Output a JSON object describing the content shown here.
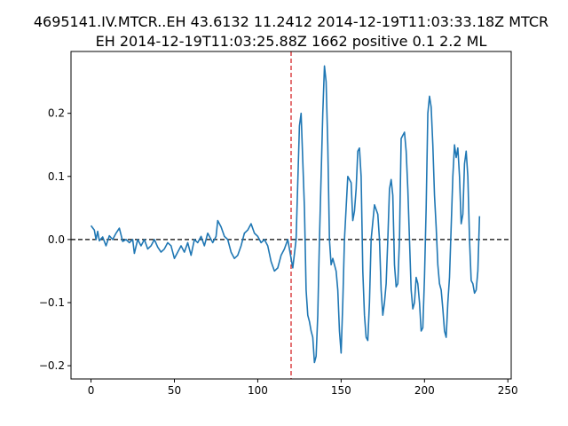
{
  "chart_data": {
    "type": "line",
    "title_lines": [
      "4695141.IV.MTCR..EH 43.6132 11.2412 2014-12-19T11:03:33.18Z MTCR",
      "EH 2014-12-19T11:03:25.88Z 1662 positive 0.1 2.2 ML"
    ],
    "xlabel": "",
    "ylabel": "",
    "xlim": [
      -12,
      252
    ],
    "ylim": [
      -0.221,
      0.298
    ],
    "xticks": [
      0,
      50,
      100,
      150,
      200,
      250
    ],
    "xtick_labels": [
      "0",
      "50",
      "100",
      "150",
      "200",
      "250"
    ],
    "yticks": [
      -0.2,
      -0.1,
      0.0,
      0.1,
      0.2
    ],
    "ytick_labels": [
      "−0.2",
      "−0.1",
      "0.0",
      "0.1",
      "0.2"
    ],
    "grid": false,
    "line_color": "#1f77b4",
    "vline": {
      "x": 120,
      "color": "#d62728",
      "style": "dashed"
    },
    "hline": {
      "y": 0.0,
      "color": "#000000",
      "style": "dashed"
    },
    "series": [
      {
        "name": "waveform",
        "keypoints": [
          [
            0,
            0.022
          ],
          [
            2,
            0.015
          ],
          [
            3,
            0.0
          ],
          [
            4,
            0.013
          ],
          [
            5,
            -0.002
          ],
          [
            7,
            0.004
          ],
          [
            9,
            -0.01
          ],
          [
            11,
            0.006
          ],
          [
            13,
            0.0
          ],
          [
            15,
            0.01
          ],
          [
            17,
            0.018
          ],
          [
            19,
            -0.003
          ],
          [
            21,
            0.0
          ],
          [
            23,
            -0.005
          ],
          [
            25,
            0.0
          ],
          [
            26,
            -0.022
          ],
          [
            28,
            0.0
          ],
          [
            30,
            -0.01
          ],
          [
            32,
            0.0
          ],
          [
            34,
            -0.015
          ],
          [
            36,
            -0.01
          ],
          [
            38,
            0.0
          ],
          [
            40,
            -0.012
          ],
          [
            42,
            -0.02
          ],
          [
            44,
            -0.015
          ],
          [
            46,
            -0.005
          ],
          [
            48,
            -0.01
          ],
          [
            50,
            -0.03
          ],
          [
            52,
            -0.02
          ],
          [
            54,
            -0.01
          ],
          [
            56,
            -0.02
          ],
          [
            58,
            -0.005
          ],
          [
            60,
            -0.025
          ],
          [
            62,
            0.0
          ],
          [
            64,
            -0.005
          ],
          [
            66,
            0.005
          ],
          [
            68,
            -0.01
          ],
          [
            70,
            0.01
          ],
          [
            72,
            0.0
          ],
          [
            73,
            -0.005
          ],
          [
            75,
            0.005
          ],
          [
            76,
            0.03
          ],
          [
            78,
            0.02
          ],
          [
            80,
            0.005
          ],
          [
            82,
            0.0
          ],
          [
            84,
            -0.02
          ],
          [
            86,
            -0.03
          ],
          [
            88,
            -0.025
          ],
          [
            90,
            -0.01
          ],
          [
            92,
            0.01
          ],
          [
            94,
            0.015
          ],
          [
            96,
            0.025
          ],
          [
            98,
            0.01
          ],
          [
            100,
            0.005
          ],
          [
            102,
            -0.005
          ],
          [
            104,
            0.0
          ],
          [
            106,
            -0.01
          ],
          [
            108,
            -0.035
          ],
          [
            110,
            -0.05
          ],
          [
            112,
            -0.045
          ],
          [
            114,
            -0.025
          ],
          [
            116,
            -0.015
          ],
          [
            118,
            0.0
          ],
          [
            120,
            -0.03
          ],
          [
            121,
            -0.045
          ],
          [
            123,
            0.0
          ],
          [
            125,
            0.18
          ],
          [
            126,
            0.2
          ],
          [
            128,
            0.05
          ],
          [
            129,
            -0.08
          ],
          [
            130,
            -0.12
          ],
          [
            131,
            -0.13
          ],
          [
            132,
            -0.145
          ],
          [
            133,
            -0.155
          ],
          [
            134,
            -0.195
          ],
          [
            135,
            -0.185
          ],
          [
            136,
            -0.12
          ],
          [
            137,
            0.0
          ],
          [
            139,
            0.2
          ],
          [
            140,
            0.275
          ],
          [
            141,
            0.25
          ],
          [
            142,
            0.15
          ],
          [
            143,
            0.0
          ],
          [
            144,
            -0.04
          ],
          [
            145,
            -0.03
          ],
          [
            146,
            -0.04
          ],
          [
            147,
            -0.05
          ],
          [
            148,
            -0.08
          ],
          [
            149,
            -0.145
          ],
          [
            150,
            -0.18
          ],
          [
            151,
            -0.1
          ],
          [
            152,
            0.0
          ],
          [
            154,
            0.1
          ],
          [
            156,
            0.09
          ],
          [
            157,
            0.03
          ],
          [
            158,
            0.045
          ],
          [
            159,
            0.08
          ],
          [
            160,
            0.14
          ],
          [
            161,
            0.145
          ],
          [
            162,
            0.1
          ],
          [
            163,
            -0.05
          ],
          [
            164,
            -0.12
          ],
          [
            165,
            -0.155
          ],
          [
            166,
            -0.16
          ],
          [
            167,
            -0.1
          ],
          [
            168,
            0.0
          ],
          [
            170,
            0.055
          ],
          [
            172,
            0.04
          ],
          [
            173,
            0.0
          ],
          [
            174,
            -0.08
          ],
          [
            175,
            -0.12
          ],
          [
            176,
            -0.1
          ],
          [
            177,
            -0.07
          ],
          [
            178,
            0.0
          ],
          [
            179,
            0.08
          ],
          [
            180,
            0.095
          ],
          [
            181,
            0.07
          ],
          [
            182,
            -0.04
          ],
          [
            183,
            -0.075
          ],
          [
            184,
            -0.07
          ],
          [
            185,
            0.0
          ],
          [
            186,
            0.16
          ],
          [
            187,
            0.165
          ],
          [
            188,
            0.17
          ],
          [
            189,
            0.14
          ],
          [
            190,
            0.08
          ],
          [
            191,
            0.0
          ],
          [
            192,
            -0.08
          ],
          [
            193,
            -0.11
          ],
          [
            194,
            -0.1
          ],
          [
            195,
            -0.06
          ],
          [
            196,
            -0.07
          ],
          [
            197,
            -0.1
          ],
          [
            198,
            -0.145
          ],
          [
            199,
            -0.14
          ],
          [
            200,
            -0.06
          ],
          [
            201,
            0.05
          ],
          [
            202,
            0.2
          ],
          [
            203,
            0.227
          ],
          [
            204,
            0.21
          ],
          [
            205,
            0.15
          ],
          [
            206,
            0.07
          ],
          [
            207,
            0.02
          ],
          [
            208,
            -0.04
          ],
          [
            209,
            -0.07
          ],
          [
            210,
            -0.08
          ],
          [
            211,
            -0.11
          ],
          [
            212,
            -0.145
          ],
          [
            213,
            -0.155
          ],
          [
            214,
            -0.1
          ],
          [
            215,
            -0.06
          ],
          [
            216,
            0.02
          ],
          [
            217,
            0.1
          ],
          [
            218,
            0.15
          ],
          [
            219,
            0.13
          ],
          [
            220,
            0.145
          ],
          [
            221,
            0.1
          ],
          [
            222,
            0.025
          ],
          [
            223,
            0.04
          ],
          [
            224,
            0.12
          ],
          [
            225,
            0.14
          ],
          [
            226,
            0.1
          ],
          [
            227,
            0.0
          ],
          [
            228,
            -0.065
          ],
          [
            229,
            -0.07
          ],
          [
            230,
            -0.085
          ],
          [
            231,
            -0.08
          ],
          [
            232,
            -0.05
          ],
          [
            233,
            0.037
          ]
        ]
      }
    ]
  }
}
